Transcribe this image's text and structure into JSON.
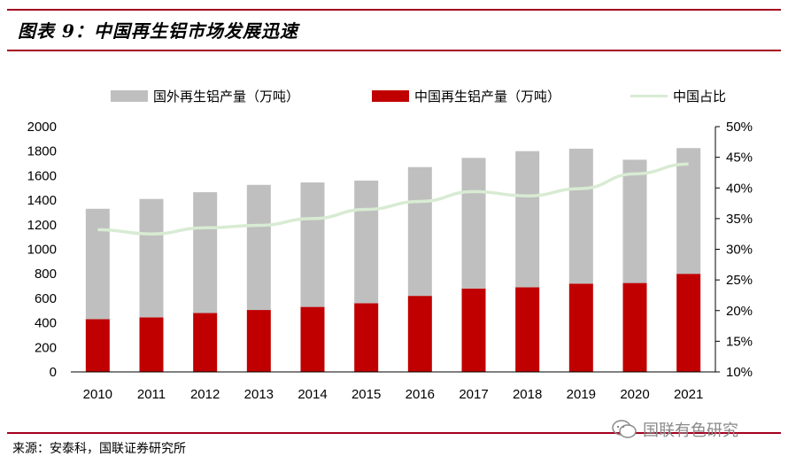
{
  "title": "图表 9：中国再生铝市场发展迅速",
  "source": "来源：安泰科，国联证券研究所",
  "watermark": "国联有色研究",
  "colors": {
    "rule": "#a4001f",
    "foreign_bar": "#bfbfbf",
    "china_bar": "#c00000",
    "share_line": "#d8ebd3"
  },
  "legend": {
    "foreign": "国外再生铝产量（万吨）",
    "china": "中国再生铝产量（万吨）",
    "share": "中国占比"
  },
  "chart_data": {
    "type": "bar",
    "stacked": true,
    "categories": [
      "2010",
      "2011",
      "2012",
      "2013",
      "2014",
      "2015",
      "2016",
      "2017",
      "2018",
      "2019",
      "2020",
      "2021"
    ],
    "series": [
      {
        "name": "中国再生铝产量（万吨）",
        "values": [
          430,
          445,
          480,
          505,
          530,
          560,
          620,
          680,
          690,
          720,
          725,
          800
        ]
      },
      {
        "name": "国外再生铝产量（万吨）",
        "values": [
          900,
          965,
          985,
          1020,
          1015,
          1000,
          1050,
          1065,
          1110,
          1100,
          1005,
          1025
        ]
      },
      {
        "name": "中国占比",
        "axis": "right",
        "type": "line",
        "values": [
          33.2,
          32.5,
          33.5,
          33.9,
          35.0,
          36.5,
          37.8,
          39.4,
          38.7,
          39.9,
          42.3,
          43.9
        ]
      }
    ],
    "y_left": {
      "ylim": [
        0,
        2000
      ],
      "ticks": [
        "0",
        "200",
        "400",
        "600",
        "800",
        "1000",
        "1200",
        "1400",
        "1600",
        "1800",
        "2000"
      ]
    },
    "y_right": {
      "ylim": [
        10,
        50
      ],
      "ticks": [
        "10%",
        "15%",
        "20%",
        "25%",
        "30%",
        "35%",
        "40%",
        "45%",
        "50%"
      ]
    },
    "legend_position": "top",
    "grid": false
  }
}
